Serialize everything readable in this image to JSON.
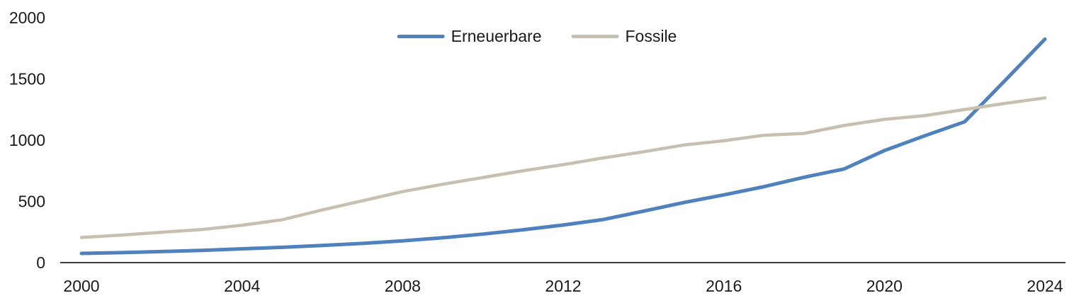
{
  "chart_data": {
    "type": "line",
    "title": "",
    "xlabel": "",
    "ylabel": "",
    "x": [
      2000,
      2001,
      2002,
      2003,
      2004,
      2005,
      2006,
      2007,
      2008,
      2009,
      2010,
      2011,
      2012,
      2013,
      2014,
      2015,
      2016,
      2017,
      2018,
      2019,
      2020,
      2021,
      2022,
      2023,
      2024
    ],
    "series": [
      {
        "name": "Erneuerbare",
        "color": "#4F81BD",
        "values": [
          75,
          82,
          90,
          100,
          113,
          125,
          140,
          157,
          178,
          203,
          233,
          268,
          307,
          352,
          420,
          490,
          553,
          620,
          697,
          765,
          915,
          1035,
          1150,
          1485,
          1825
        ]
      },
      {
        "name": "Fossile",
        "color": "#C7C0B0",
        "values": [
          205,
          225,
          248,
          270,
          305,
          350,
          430,
          505,
          580,
          640,
          695,
          750,
          800,
          855,
          905,
          960,
          995,
          1040,
          1055,
          1120,
          1170,
          1200,
          1250,
          1300,
          1345
        ]
      }
    ],
    "ylim": [
      0,
      2000
    ],
    "y_ticks": [
      0,
      500,
      1000,
      1500,
      2000
    ],
    "x_ticks": [
      2000,
      2004,
      2008,
      2012,
      2016,
      2020,
      2024
    ],
    "grid": false,
    "legend_position": "top-center"
  },
  "colors": {
    "background": "#ffffff",
    "axis_line": "#404040",
    "tick_text": "#1a1a1a"
  }
}
